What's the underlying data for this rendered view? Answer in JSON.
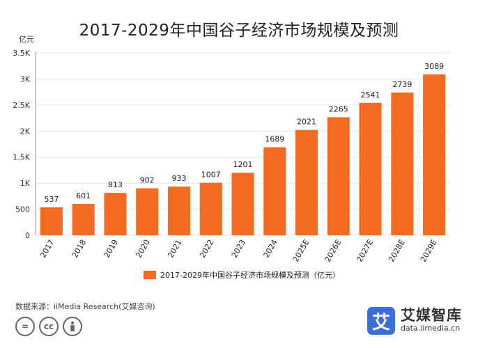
{
  "title": "2017-2029年中国谷子经济市场规模及预测",
  "chart_data": {
    "type": "bar",
    "title": "2017-2029年中国谷子经济市场规模及预测",
    "unit_label": "亿元",
    "categories": [
      "2017",
      "2018",
      "2019",
      "2020",
      "2021",
      "2022",
      "2023",
      "2024",
      "2025E",
      "2026E",
      "2027E",
      "2028E",
      "2029E"
    ],
    "series": [
      {
        "name": "2017-2029年中国谷子经济市场规模及预测（亿元）",
        "values": [
          537,
          601,
          813,
          902,
          933,
          1007,
          1201,
          1689,
          2021,
          2265,
          2541,
          2739,
          3089
        ],
        "color": "#f26b21"
      }
    ],
    "ylim": [
      0,
      3500
    ],
    "yticks": [
      0,
      500,
      1000,
      1500,
      2000,
      2500,
      3000,
      3500
    ],
    "ytick_labels": [
      "0",
      "500",
      "1K",
      "1.5K",
      "2K",
      "2.5K",
      "3K",
      "3.5K"
    ],
    "grid": "horizontal",
    "legend_position": "bottom-center"
  },
  "footer": {
    "source": "数据来源：iiMedia Research(艾媒咨询)",
    "cc_icons": [
      "=",
      "cc",
      "person"
    ],
    "brand_logo": "艾",
    "brand_name": "艾媒智库",
    "brand_url": "data.iimedia.cn"
  },
  "colors": {
    "bar": "#f26b21",
    "logo": "#3a6fd8"
  }
}
